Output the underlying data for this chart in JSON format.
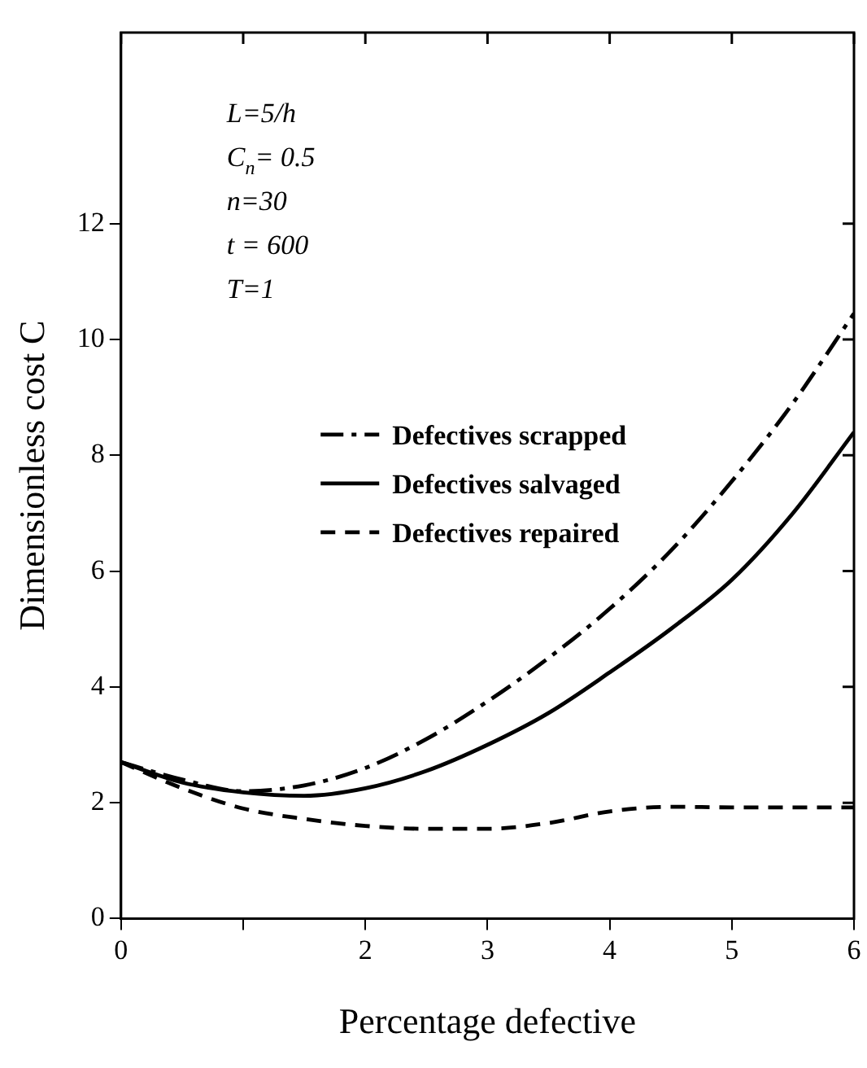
{
  "chart_data": {
    "type": "line",
    "xlabel": "Percentage defective",
    "ylabel": "Dimensionless cost C",
    "xlim": [
      0,
      6
    ],
    "ylim": [
      0,
      15.3
    ],
    "xticks": [
      0,
      {
        "value": 1,
        "label": null
      },
      2,
      3,
      4,
      5,
      6
    ],
    "yticks": [
      0,
      2,
      4,
      6,
      8,
      10,
      12
    ],
    "grid": false,
    "legend": "right",
    "marker": "none",
    "annotations": [
      "L=5/h",
      "C$_{n}$= 0.5",
      "n=30",
      "t = 600",
      "T=1"
    ],
    "series": [
      {
        "name": "Defectives scrapped",
        "color": "#000000",
        "line_style": "dashdot",
        "x": [
          0,
          0.5,
          1,
          1.5,
          2,
          2.5,
          3,
          3.5,
          4,
          4.5,
          5,
          5.5,
          6
        ],
        "values": [
          2.7,
          2.4,
          2.2,
          2.3,
          2.6,
          3.1,
          3.75,
          4.5,
          5.35,
          6.35,
          7.55,
          8.9,
          10.45
        ]
      },
      {
        "name": "Defectives salvaged",
        "color": "#000000",
        "line_style": "solid",
        "x": [
          0,
          0.5,
          1,
          1.5,
          2,
          2.5,
          3,
          3.5,
          4,
          4.5,
          5,
          5.5,
          6
        ],
        "values": [
          2.7,
          2.35,
          2.18,
          2.12,
          2.25,
          2.55,
          3.0,
          3.55,
          4.25,
          5.0,
          5.85,
          7.0,
          8.4
        ]
      },
      {
        "name": "Defectives repaired",
        "color": "#000000",
        "line_style": "dashed",
        "x": [
          0,
          0.5,
          1,
          1.5,
          2,
          2.5,
          3,
          3.5,
          4,
          4.5,
          5,
          6
        ],
        "values": [
          2.7,
          2.25,
          1.9,
          1.72,
          1.6,
          1.55,
          1.55,
          1.65,
          1.85,
          1.93,
          1.92,
          1.92
        ]
      }
    ]
  }
}
